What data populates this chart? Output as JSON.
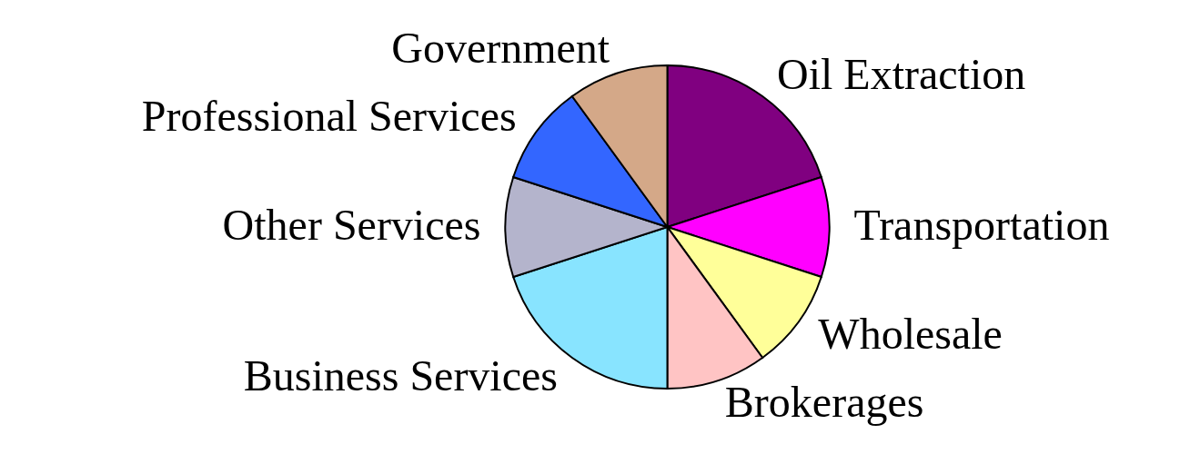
{
  "chart_data": {
    "type": "pie",
    "categories": [
      "Oil Extraction",
      "Transportation",
      "Wholesale",
      "Brokerages",
      "Business Services",
      "Other Services",
      "Professional Services",
      "Government"
    ],
    "values": [
      20,
      10,
      10,
      10,
      20,
      10,
      10,
      10
    ],
    "colors": [
      "#800080",
      "#ff00ff",
      "#ffff99",
      "#ffc4c4",
      "#88e4ff",
      "#b4b4cc",
      "#3366ff",
      "#d4a888"
    ]
  }
}
